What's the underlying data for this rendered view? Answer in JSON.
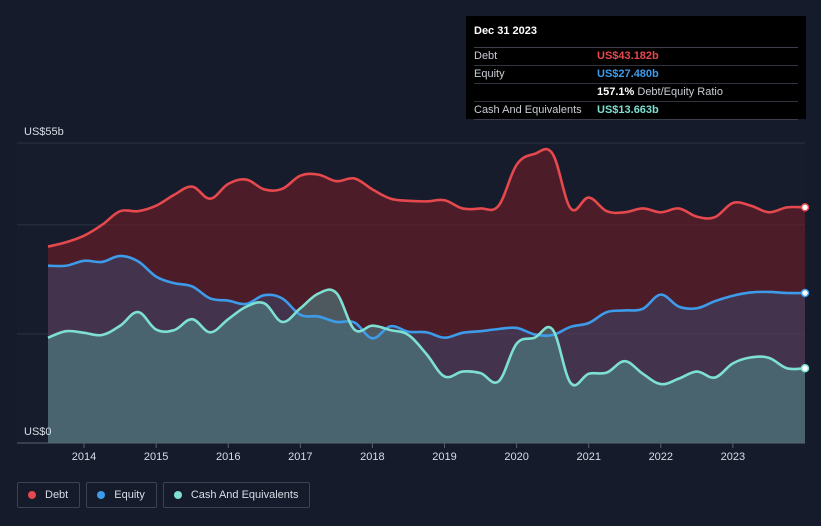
{
  "tooltip": {
    "date": "Dec 31 2023",
    "rows": [
      {
        "label": "Debt",
        "value": "US$43.182b",
        "color": "#e5484d"
      },
      {
        "label": "Equity",
        "value": "US$27.480b",
        "color": "#3d9be9"
      },
      {
        "label": "",
        "value": "157.1%",
        "suffix": "Debt/Equity Ratio",
        "color": "#ffffff"
      },
      {
        "label": "Cash And Equivalents",
        "value": "US$13.663b",
        "color": "#7ee0d2"
      }
    ]
  },
  "legend": [
    {
      "label": "Debt",
      "color": "#e5484d"
    },
    {
      "label": "Equity",
      "color": "#3d9be9"
    },
    {
      "label": "Cash And Equivalents",
      "color": "#7ee0d2"
    }
  ],
  "chart_data": {
    "type": "area",
    "ylabel_top": "US$55b",
    "ylabel_bottom": "US$0",
    "ylim": [
      0,
      55
    ],
    "xlim": [
      2013.5,
      2024.0
    ],
    "xticks": [
      "2014",
      "2015",
      "2016",
      "2017",
      "2018",
      "2019",
      "2020",
      "2021",
      "2022",
      "2023"
    ],
    "grid": true,
    "legend_position": "bottom-left",
    "series": [
      {
        "name": "Debt",
        "color": "#e5484d",
        "x": [
          2013.5,
          2013.75,
          2014.0,
          2014.25,
          2014.5,
          2014.75,
          2015.0,
          2015.25,
          2015.5,
          2015.75,
          2016.0,
          2016.25,
          2016.5,
          2016.75,
          2017.0,
          2017.25,
          2017.5,
          2017.75,
          2018.0,
          2018.25,
          2018.5,
          2018.75,
          2019.0,
          2019.25,
          2019.5,
          2019.75,
          2020.0,
          2020.25,
          2020.5,
          2020.75,
          2021.0,
          2021.25,
          2021.5,
          2021.75,
          2022.0,
          2022.25,
          2022.5,
          2022.75,
          2023.0,
          2023.25,
          2023.5,
          2023.75,
          2024.0
        ],
        "y": [
          36,
          36.8,
          38,
          40,
          42.5,
          42.5,
          43.5,
          45.5,
          47,
          44.8,
          47.5,
          48.3,
          46.5,
          46.6,
          49,
          49.2,
          48,
          48.5,
          46.5,
          44.8,
          44.4,
          44.3,
          44.5,
          43,
          43,
          43.5,
          51,
          53,
          53,
          43,
          45,
          42.5,
          42.3,
          43,
          42.3,
          43,
          41.5,
          41.4,
          44,
          43.5,
          42.3,
          43.2,
          43.2
        ]
      },
      {
        "name": "Equity",
        "color": "#3d9be9",
        "x": [
          2013.5,
          2013.75,
          2014.0,
          2014.25,
          2014.5,
          2014.75,
          2015.0,
          2015.25,
          2015.5,
          2015.75,
          2016.0,
          2016.25,
          2016.5,
          2016.75,
          2017.0,
          2017.25,
          2017.5,
          2017.75,
          2018.0,
          2018.25,
          2018.5,
          2018.75,
          2019.0,
          2019.25,
          2019.5,
          2019.75,
          2020.0,
          2020.25,
          2020.5,
          2020.75,
          2021.0,
          2021.25,
          2021.5,
          2021.75,
          2022.0,
          2022.25,
          2022.5,
          2022.75,
          2023.0,
          2023.25,
          2023.5,
          2023.75,
          2024.0
        ],
        "y": [
          32.5,
          32.5,
          33.4,
          33.2,
          34.3,
          33.3,
          30.5,
          29.3,
          28.7,
          26.5,
          26.1,
          25.5,
          27.1,
          26.5,
          23.5,
          23.2,
          22.2,
          22.1,
          19.2,
          21.4,
          20.4,
          20.3,
          19.3,
          20.2,
          20.5,
          20.9,
          21.1,
          19.9,
          19.8,
          21.3,
          22.0,
          24.0,
          24.3,
          24.6,
          27.2,
          25.0,
          24.7,
          26.0,
          27.0,
          27.6,
          27.7,
          27.5,
          27.5
        ]
      },
      {
        "name": "Cash And Equivalents",
        "color": "#7ee0d2",
        "x": [
          2013.5,
          2013.75,
          2014.0,
          2014.25,
          2014.5,
          2014.75,
          2015.0,
          2015.25,
          2015.5,
          2015.75,
          2016.0,
          2016.25,
          2016.5,
          2016.75,
          2017.0,
          2017.25,
          2017.5,
          2017.75,
          2018.0,
          2018.25,
          2018.5,
          2018.75,
          2019.0,
          2019.25,
          2019.5,
          2019.75,
          2020.0,
          2020.25,
          2020.5,
          2020.75,
          2021.0,
          2021.25,
          2021.5,
          2021.75,
          2022.0,
          2022.25,
          2022.5,
          2022.75,
          2023.0,
          2023.25,
          2023.5,
          2023.75,
          2024.0
        ],
        "y": [
          19.3,
          20.5,
          20.2,
          19.8,
          21.5,
          24.0,
          20.8,
          20.7,
          22.7,
          20.3,
          22.7,
          25.0,
          25.6,
          22.2,
          24.7,
          27.4,
          27.5,
          20.8,
          21.5,
          20.7,
          19.8,
          16.3,
          12.2,
          13.1,
          12.8,
          11.3,
          18.2,
          19.3,
          20.8,
          11.0,
          12.7,
          12.9,
          15.0,
          12.7,
          10.8,
          11.8,
          13.1,
          12.0,
          14.6,
          15.7,
          15.6,
          13.7,
          13.7
        ]
      }
    ]
  }
}
